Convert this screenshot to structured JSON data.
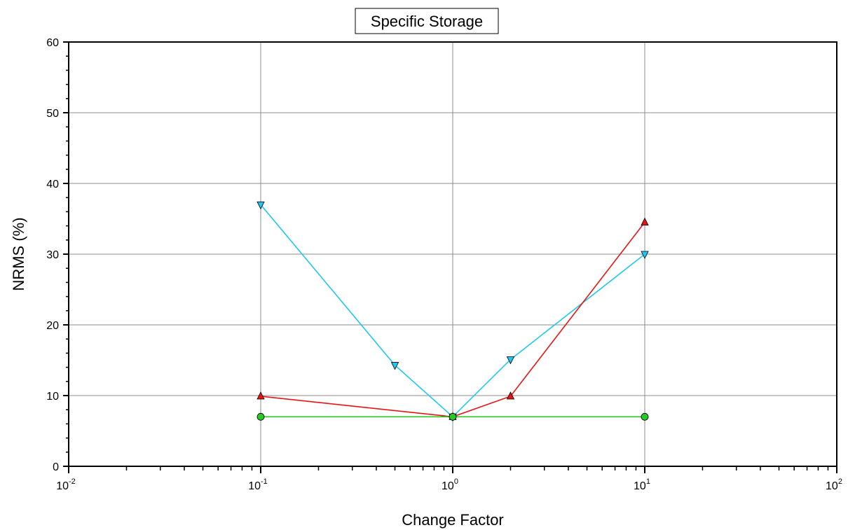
{
  "chart_data": {
    "type": "line",
    "title": "Specific Storage",
    "xlabel": "Change Factor",
    "ylabel": "NRMS (%)",
    "xscale": "log",
    "xlim": [
      0.01,
      100
    ],
    "ylim": [
      0,
      60
    ],
    "y_ticks": [
      "0",
      "10",
      "20",
      "30",
      "40",
      "50",
      "60"
    ],
    "x_ticks": [
      {
        "value": 0.01,
        "base": "10",
        "exp": "-2"
      },
      {
        "value": 0.1,
        "base": "10",
        "exp": "-1"
      },
      {
        "value": 1,
        "base": "10",
        "exp": "0"
      },
      {
        "value": 10,
        "base": "10",
        "exp": "1"
      },
      {
        "value": 100,
        "base": "10",
        "exp": "2"
      }
    ],
    "grid": true,
    "legend": "none",
    "series": [
      {
        "marker": "triangle-down",
        "color": "#1ec8f0",
        "x": [
          0.1,
          0.5,
          1,
          2,
          10
        ],
        "y": [
          37,
          14.3,
          7,
          15.1,
          30
        ]
      },
      {
        "marker": "triangle-up",
        "color": "#e81414",
        "x": [
          0.1,
          1,
          2,
          10
        ],
        "y": [
          9.9,
          7,
          9.9,
          34.5
        ]
      },
      {
        "marker": "circle",
        "color": "#28c828",
        "x": [
          0.1,
          1,
          10
        ],
        "y": [
          7,
          7,
          7
        ]
      }
    ]
  }
}
